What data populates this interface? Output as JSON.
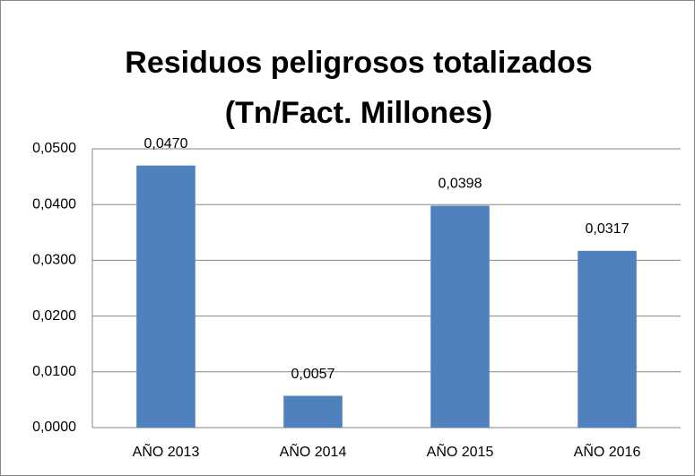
{
  "chart_data": {
    "type": "bar",
    "title": [
      "Residuos peligrosos totalizados",
      "(Tn/Fact. Millones)"
    ],
    "categories": [
      "AÑO 2013",
      "AÑO 2014",
      "AÑO 2015",
      "AÑO 2016"
    ],
    "values": [
      0.047,
      0.0057,
      0.0398,
      0.0317
    ],
    "value_labels": [
      "0,0470",
      "0,0057",
      "0,0398",
      "0,0317"
    ],
    "color": "#4f81bd",
    "ylim": [
      0,
      0.05
    ],
    "yticks": [
      {
        "value": 0,
        "label": "0,0000"
      },
      {
        "value": 0.01,
        "label": "0,0100"
      },
      {
        "value": 0.02,
        "label": "0,0200"
      },
      {
        "value": 0.03,
        "label": "0,0300"
      },
      {
        "value": 0.04,
        "label": "0,0400"
      },
      {
        "value": 0.05,
        "label": "0,0500"
      }
    ],
    "grid": true
  }
}
